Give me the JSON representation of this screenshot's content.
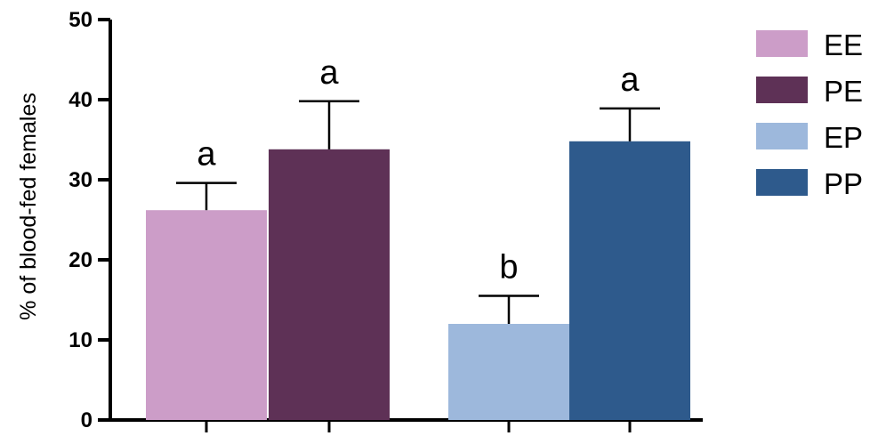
{
  "chart_data": {
    "type": "bar",
    "ylabel": "% of blood-fed females",
    "xlabel": "",
    "ylim": [
      0,
      50
    ],
    "yticks": [
      0,
      10,
      20,
      30,
      40,
      50
    ],
    "grid": false,
    "legend_position": "top-right",
    "series": [
      {
        "name": "EE",
        "color": "#cc9dc8",
        "value": 26.2,
        "error": 3.4,
        "significance": "a"
      },
      {
        "name": "PE",
        "color": "#5e3156",
        "value": 33.8,
        "error": 6.0,
        "significance": "a"
      },
      {
        "name": "EP",
        "color": "#9db8dc",
        "value": 12.0,
        "error": 3.5,
        "significance": "b"
      },
      {
        "name": "PP",
        "color": "#2e5a8c",
        "value": 34.8,
        "error": 4.1,
        "significance": "a"
      }
    ]
  }
}
